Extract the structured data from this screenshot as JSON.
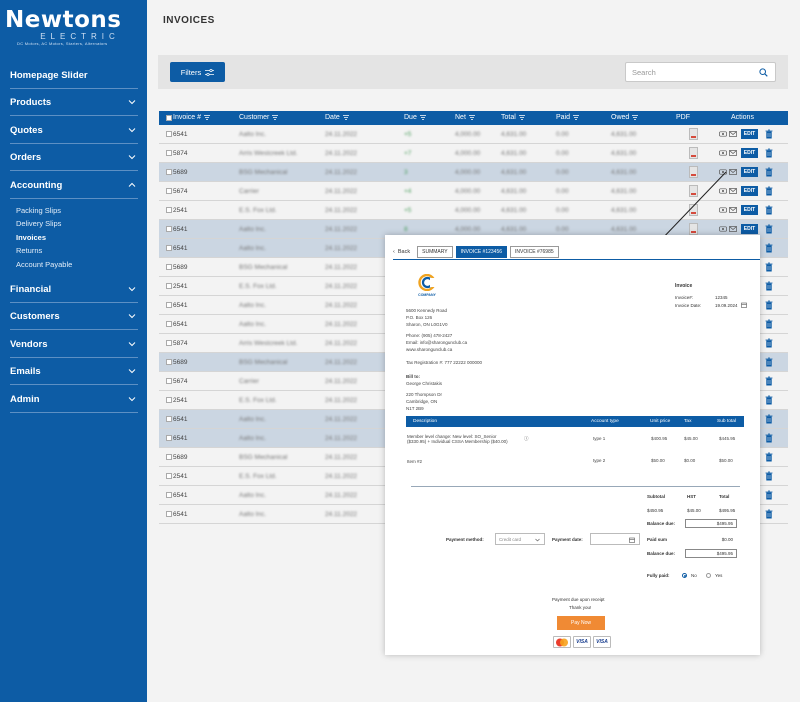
{
  "brand": {
    "name": "Newtons",
    "sub": "ELECTRIC",
    "tagline": "DC Motors, AC Motors, Starters, Alternators"
  },
  "sidebar": {
    "items": [
      {
        "label": "Homepage Slider",
        "chevron": false
      },
      {
        "label": "Products",
        "chevron": true
      },
      {
        "label": "Quotes",
        "chevron": true
      },
      {
        "label": "Orders",
        "chevron": true
      },
      {
        "label": "Accounting",
        "chevron": true,
        "expanded": true
      },
      {
        "label": "Financial",
        "chevron": true
      },
      {
        "label": "Customers",
        "chevron": true
      },
      {
        "label": "Vendors",
        "chevron": true
      },
      {
        "label": "Emails",
        "chevron": true
      },
      {
        "label": "Admin",
        "chevron": true
      }
    ],
    "sub_items": [
      "Packing Slips",
      "Delivery Slips",
      "Invoices",
      "Returns",
      "Account Payable"
    ],
    "active_sub": "Invoices"
  },
  "page": {
    "title": "INVOICES"
  },
  "toolbar": {
    "filters_label": "Filters",
    "search_placeholder": "Search"
  },
  "table": {
    "columns": [
      "Invoice #",
      "Customer",
      "Date",
      "Due",
      "Net",
      "Total",
      "Paid",
      "Owed",
      "PDF",
      "Actions"
    ],
    "edit_label": "EDIT",
    "rows": [
      {
        "id": "6541",
        "customer": "Aalto Inc.",
        "date": "24.11.2022",
        "due": "+5",
        "net": "4,000.00",
        "total": "4,631.00",
        "paid": "0.00",
        "owed": "4,631.00",
        "hl": false
      },
      {
        "id": "5874",
        "customer": "Arris Westcreek Ltd.",
        "date": "24.11.2022",
        "due": "+7",
        "net": "4,000.00",
        "total": "4,631.00",
        "paid": "0.00",
        "owed": "4,631.00",
        "hl": false
      },
      {
        "id": "5689",
        "customer": "BSG Mechanical",
        "date": "24.11.2022",
        "due": "3",
        "net": "4,000.00",
        "total": "4,631.00",
        "paid": "0.00",
        "owed": "4,631.00",
        "hl": true
      },
      {
        "id": "5674",
        "customer": "Carrier",
        "date": "24.11.2022",
        "due": "+4",
        "net": "4,000.00",
        "total": "4,631.00",
        "paid": "0.00",
        "owed": "4,631.00",
        "hl": false
      },
      {
        "id": "2541",
        "customer": "E.S. Fox Ltd.",
        "date": "24.11.2022",
        "due": "+5",
        "net": "4,000.00",
        "total": "4,631.00",
        "paid": "0.00",
        "owed": "4,631.00",
        "hl": false
      },
      {
        "id": "6541",
        "customer": "Aalto Inc.",
        "date": "24.11.2022",
        "due": "8",
        "net": "4,000.00",
        "total": "4,631.00",
        "paid": "0.00",
        "owed": "4,631.00",
        "hl": true
      },
      {
        "id": "6541",
        "customer": "Aalto Inc.",
        "date": "24.11.2022",
        "due": "",
        "net": "",
        "total": "",
        "paid": "",
        "owed": "",
        "hl": true
      },
      {
        "id": "5689",
        "customer": "BSG Mechanical",
        "date": "24.11.2022",
        "due": "",
        "net": "",
        "total": "",
        "paid": "",
        "owed": "",
        "hl": false
      },
      {
        "id": "2541",
        "customer": "E.S. Fox Ltd.",
        "date": "24.11.2022",
        "due": "",
        "net": "",
        "total": "",
        "paid": "",
        "owed": "",
        "hl": false
      },
      {
        "id": "6541",
        "customer": "Aalto Inc.",
        "date": "24.11.2022",
        "due": "",
        "net": "",
        "total": "",
        "paid": "",
        "owed": "",
        "hl": false
      },
      {
        "id": "6541",
        "customer": "Aalto Inc.",
        "date": "24.11.2022",
        "due": "",
        "net": "",
        "total": "",
        "paid": "",
        "owed": "",
        "hl": false
      },
      {
        "id": "5874",
        "customer": "Arris Westcreek Ltd.",
        "date": "24.11.2022",
        "due": "",
        "net": "",
        "total": "",
        "paid": "",
        "owed": "",
        "hl": false
      },
      {
        "id": "5689",
        "customer": "BSG Mechanical",
        "date": "24.11.2022",
        "due": "",
        "net": "",
        "total": "",
        "paid": "",
        "owed": "",
        "hl": true
      },
      {
        "id": "5674",
        "customer": "Carrier",
        "date": "24.11.2022",
        "due": "",
        "net": "",
        "total": "",
        "paid": "",
        "owed": "",
        "hl": false
      },
      {
        "id": "2541",
        "customer": "E.S. Fox Ltd.",
        "date": "24.11.2022",
        "due": "",
        "net": "",
        "total": "",
        "paid": "",
        "owed": "",
        "hl": false
      },
      {
        "id": "6541",
        "customer": "Aalto Inc.",
        "date": "24.11.2022",
        "due": "",
        "net": "",
        "total": "",
        "paid": "",
        "owed": "",
        "hl": true
      },
      {
        "id": "6541",
        "customer": "Aalto Inc.",
        "date": "24.11.2022",
        "due": "",
        "net": "",
        "total": "",
        "paid": "",
        "owed": "",
        "hl": true
      },
      {
        "id": "5689",
        "customer": "BSG Mechanical",
        "date": "24.11.2022",
        "due": "",
        "net": "",
        "total": "",
        "paid": "",
        "owed": "",
        "hl": false
      },
      {
        "id": "2541",
        "customer": "E.S. Fox Ltd.",
        "date": "24.11.2022",
        "due": "",
        "net": "",
        "total": "",
        "paid": "",
        "owed": "",
        "hl": false
      },
      {
        "id": "6541",
        "customer": "Aalto Inc.",
        "date": "24.11.2022",
        "due": "",
        "net": "",
        "total": "",
        "paid": "",
        "owed": "",
        "hl": false
      },
      {
        "id": "6541",
        "customer": "Aalto Inc.",
        "date": "24.11.2022",
        "due": "",
        "net": "",
        "total": "",
        "paid": "",
        "owed": "",
        "hl": false
      }
    ]
  },
  "modal": {
    "back": "Back",
    "tabs": [
      "SUMMARY",
      "INVOICE #123456",
      "INVOICE #76985"
    ],
    "company": "COMPANY",
    "invoice_title": "Invoice",
    "invoice_no_label": "Invoice#:",
    "invoice_no": "12345",
    "invoice_date_label": "Invoice Date:",
    "invoice_date": "19.09.2024",
    "address": [
      "5600 Kennedy Road",
      "P.O. Box 126",
      "Sharon, ON L0G1V0"
    ],
    "phone": "Phone: (905) 478-2427",
    "email": "Email: info@sharongunclub.ca",
    "web": "www.sharongunclub.ca",
    "tax": "Tax Registration #: 777 22222 000000",
    "bill_to_label": "Bill to:",
    "bill_name": "George Christakis",
    "bill_addr": [
      "220 Thompson Dr",
      "Cambridge, ON",
      "N1T 2B9"
    ],
    "columns": [
      "Description",
      "Account type",
      "Unit price",
      "Tax",
      "Sub total"
    ],
    "lines": [
      {
        "desc1": "Member level change: New level: SO_Senior",
        "desc2": "($330.95) + Individual CSSA Membership ($40.00)",
        "type": "type 1",
        "unit": "$400.95",
        "tax": "$45.00",
        "sub": "$445.95"
      },
      {
        "desc1": "Item #2",
        "desc2": "",
        "type": "type 2",
        "unit": "$50.00",
        "tax": "$0.00",
        "sub": "$50.00"
      }
    ],
    "sum_labels": [
      "Subtotal",
      "HST",
      "Total"
    ],
    "sum_values": [
      "$450.95",
      "$45.00",
      "$495.95"
    ],
    "balance_due_label": "Balance due:",
    "balance_due": "$495.95",
    "paid_sum_label": "Paid sum",
    "paid_sum": "$0.00",
    "balance_due2": "$495.95",
    "payment_method_label": "Payment method:",
    "payment_method": "Credit card",
    "payment_date_label": "Payment date:",
    "fully_paid_label": "Fully paid:",
    "no": "No",
    "yes": "Yes",
    "due_note": "Payment due upon receipt",
    "thanks": "Thank you!",
    "pay_now": "Pay Now",
    "cards": [
      "VISA",
      "VISA"
    ]
  }
}
